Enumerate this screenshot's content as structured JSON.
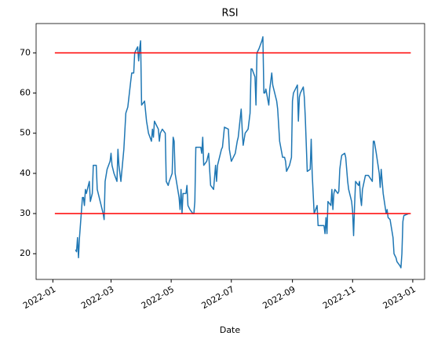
{
  "chart_data": {
    "type": "line",
    "title": "RSI",
    "xlabel": "Date",
    "color": "#1f77b4",
    "x": [
      "2022-01-24",
      "2022-01-25",
      "2022-01-26",
      "2022-01-27",
      "2022-01-28",
      "2022-01-31",
      "2022-02-01",
      "2022-02-02",
      "2022-02-03",
      "2022-02-04",
      "2022-02-07",
      "2022-02-08",
      "2022-02-10",
      "2022-02-11",
      "2022-02-14",
      "2022-02-15",
      "2022-02-17",
      "2022-02-21",
      "2022-02-22",
      "2022-02-23",
      "2022-02-25",
      "2022-02-28",
      "2022-03-01",
      "2022-03-02",
      "2022-03-04",
      "2022-03-07",
      "2022-03-08",
      "2022-03-09",
      "2022-03-11",
      "2022-03-14",
      "2022-03-16",
      "2022-03-18",
      "2022-03-21",
      "2022-03-22",
      "2022-03-24",
      "2022-03-25",
      "2022-03-28",
      "2022-03-29",
      "2022-03-30",
      "2022-03-31",
      "2022-04-01",
      "2022-04-04",
      "2022-04-06",
      "2022-04-08",
      "2022-04-11",
      "2022-04-12",
      "2022-04-13",
      "2022-04-14",
      "2022-04-18",
      "2022-04-19",
      "2022-04-20",
      "2022-04-22",
      "2022-04-25",
      "2022-04-26",
      "2022-04-28",
      "2022-04-29",
      "2022-05-02",
      "2022-05-03",
      "2022-05-04",
      "2022-05-05",
      "2022-05-09",
      "2022-05-10",
      "2022-05-11",
      "2022-05-12",
      "2022-05-13",
      "2022-05-16",
      "2022-05-17",
      "2022-05-18",
      "2022-05-20",
      "2022-05-23",
      "2022-05-24",
      "2022-05-25",
      "2022-05-26",
      "2022-05-31",
      "2022-06-01",
      "2022-06-02",
      "2022-06-03",
      "2022-06-06",
      "2022-06-08",
      "2022-06-10",
      "2022-06-13",
      "2022-06-15",
      "2022-06-16",
      "2022-06-17",
      "2022-06-21",
      "2022-06-22",
      "2022-06-24",
      "2022-06-28",
      "2022-06-29",
      "2022-07-01",
      "2022-07-05",
      "2022-07-07",
      "2022-07-08",
      "2022-07-11",
      "2022-07-12",
      "2022-07-13",
      "2022-07-15",
      "2022-07-18",
      "2022-07-20",
      "2022-07-21",
      "2022-07-22",
      "2022-07-25",
      "2022-07-26",
      "2022-07-27",
      "2022-07-29",
      "2022-08-01",
      "2022-08-02",
      "2022-08-03",
      "2022-08-04",
      "2022-08-05",
      "2022-08-08",
      "2022-08-09",
      "2022-08-10",
      "2022-08-11",
      "2022-08-12",
      "2022-08-15",
      "2022-08-16",
      "2022-08-17",
      "2022-08-18",
      "2022-08-19",
      "2022-08-22",
      "2022-08-24",
      "2022-08-25",
      "2022-08-26",
      "2022-08-29",
      "2022-08-31",
      "2022-09-01",
      "2022-09-02",
      "2022-09-06",
      "2022-09-07",
      "2022-09-08",
      "2022-09-09",
      "2022-09-12",
      "2022-09-13",
      "2022-09-14",
      "2022-09-16",
      "2022-09-19",
      "2022-09-20",
      "2022-09-21",
      "2022-09-22",
      "2022-09-23",
      "2022-09-26",
      "2022-09-27",
      "2022-09-30",
      "2022-10-03",
      "2022-10-04",
      "2022-10-05",
      "2022-10-06",
      "2022-10-07",
      "2022-10-10",
      "2022-10-11",
      "2022-10-12",
      "2022-10-13",
      "2022-10-14",
      "2022-10-17",
      "2022-10-18",
      "2022-10-19",
      "2022-10-20",
      "2022-10-21",
      "2022-10-24",
      "2022-10-25",
      "2022-10-27",
      "2022-10-28",
      "2022-10-31",
      "2022-11-01",
      "2022-11-02",
      "2022-11-03",
      "2022-11-04",
      "2022-11-07",
      "2022-11-08",
      "2022-11-09",
      "2022-11-10",
      "2022-11-11",
      "2022-11-14",
      "2022-11-15",
      "2022-11-17",
      "2022-11-21",
      "2022-11-22",
      "2022-11-23",
      "2022-11-25",
      "2022-11-28",
      "2022-11-29",
      "2022-11-30",
      "2022-12-01",
      "2022-12-02",
      "2022-12-05",
      "2022-12-06",
      "2022-12-07",
      "2022-12-09",
      "2022-12-12",
      "2022-12-13",
      "2022-12-15",
      "2022-12-16",
      "2022-12-19",
      "2022-12-20",
      "2022-12-21",
      "2022-12-22",
      "2022-12-23",
      "2022-12-28"
    ],
    "values": [
      21,
      20.5,
      24,
      19,
      24,
      34,
      34,
      32,
      36,
      35,
      38,
      33,
      35,
      42,
      42,
      36,
      34,
      30,
      28.5,
      38,
      41,
      43,
      45,
      42,
      40,
      38,
      46,
      42,
      38,
      46,
      55,
      56.5,
      63,
      65,
      65,
      70,
      71.5,
      68,
      71,
      73,
      57,
      58,
      53,
      50,
      48,
      51,
      49,
      53,
      51,
      48,
      50,
      51,
      50,
      38,
      37,
      38,
      40,
      49,
      48,
      40,
      34,
      31,
      36,
      30,
      35,
      35,
      37,
      32,
      31,
      30,
      30,
      33,
      46.5,
      46.5,
      45,
      49,
      42,
      43,
      45,
      37,
      36,
      42,
      38,
      42,
      46,
      46.5,
      51.5,
      51,
      46,
      43,
      45,
      48,
      49,
      56,
      51,
      47,
      50,
      51,
      55,
      66,
      66,
      64,
      57,
      70,
      71,
      73,
      74,
      60,
      60,
      61,
      57,
      61,
      63,
      65,
      62,
      59,
      58,
      56,
      52,
      48,
      44,
      44,
      43,
      40.5,
      42,
      44,
      58,
      60,
      62,
      53,
      59,
      60,
      61.5,
      59,
      54,
      40.5,
      41,
      48.5,
      40,
      35,
      30,
      32,
      27,
      27,
      27,
      25,
      29,
      25,
      33,
      32,
      36,
      31,
      35,
      36,
      35,
      35.5,
      41,
      43,
      44.5,
      45,
      44,
      38,
      36,
      33,
      30.5,
      24.5,
      32,
      38,
      37,
      38,
      34,
      32,
      36,
      39.5,
      39.5,
      39.5,
      38,
      48,
      48,
      45,
      40,
      36.5,
      41,
      38,
      35,
      30,
      31,
      29,
      28.5,
      24,
      20,
      19,
      18,
      17,
      16.5,
      20,
      28,
      29.5,
      30
    ],
    "hlines": [
      {
        "y": 70,
        "xmin": "2022-01-03",
        "xmax": "2022-12-30",
        "color": "#ff0000"
      },
      {
        "y": 30,
        "xmin": "2022-01-03",
        "xmax": "2022-12-30",
        "color": "#ff0000"
      }
    ],
    "xlim": [
      "2021-12-15",
      "2023-01-13"
    ],
    "xticks": [
      {
        "value": "2022-01-01",
        "label": "2022-01"
      },
      {
        "value": "2022-03-01",
        "label": "2022-03"
      },
      {
        "value": "2022-05-01",
        "label": "2022-05"
      },
      {
        "value": "2022-07-01",
        "label": "2022-07"
      },
      {
        "value": "2022-09-01",
        "label": "2022-09"
      },
      {
        "value": "2022-11-01",
        "label": "2022-11"
      },
      {
        "value": "2023-01-01",
        "label": "2023-01"
      }
    ],
    "ylim": [
      13.6,
      77.3
    ],
    "yticks": [
      20,
      30,
      40,
      50,
      60,
      70
    ]
  }
}
